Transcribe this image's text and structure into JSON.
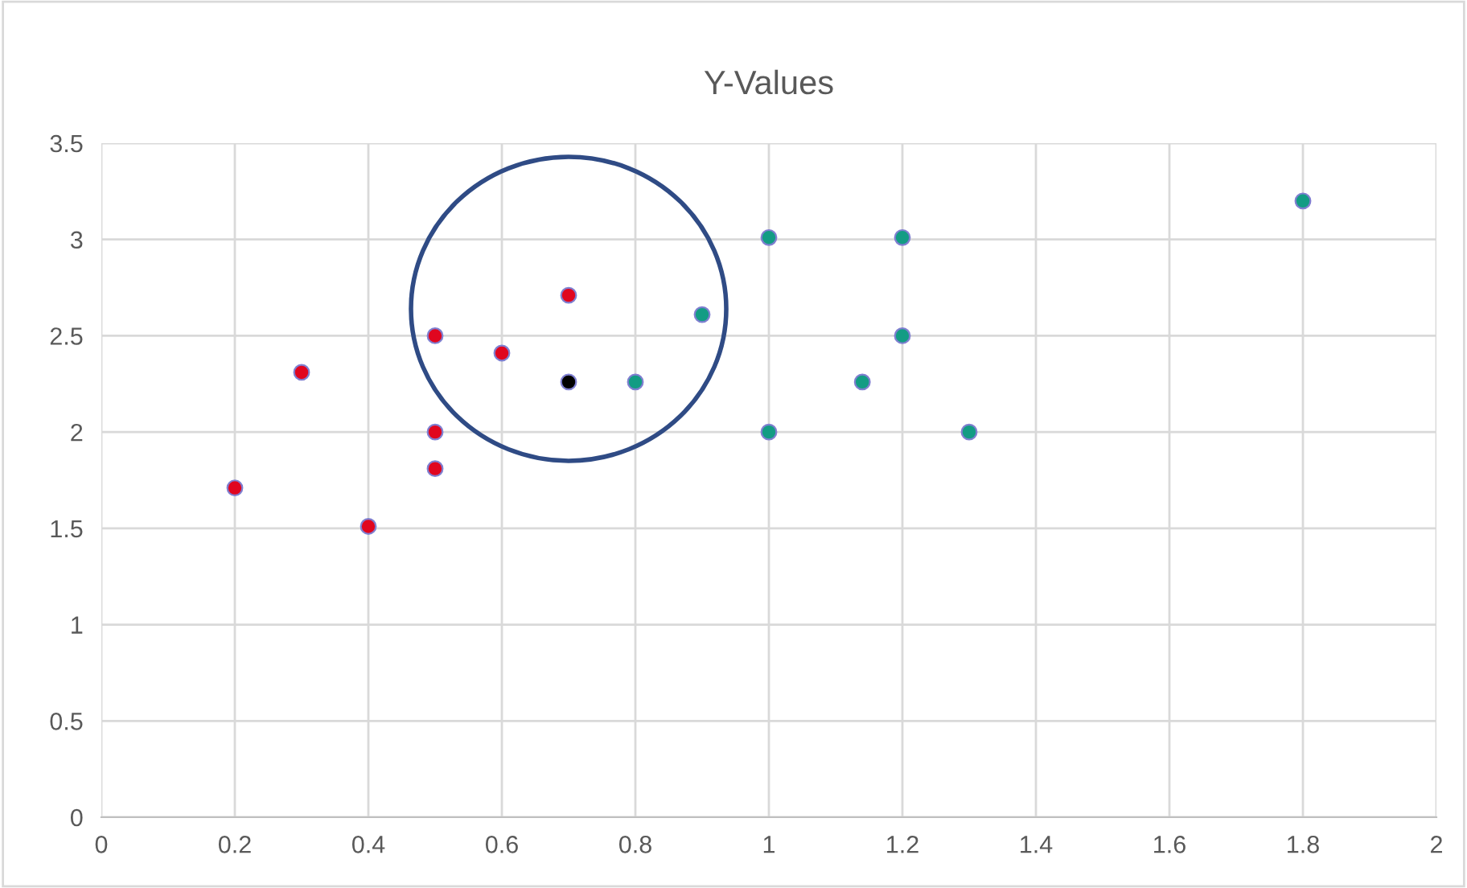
{
  "chart_data": {
    "type": "scatter",
    "title": "Y-Values",
    "series": [
      {
        "color": "#e0061f",
        "x": [
          0.2,
          0.3,
          0.4,
          0.5,
          0.5,
          0.5,
          0.6,
          0.7
        ],
        "values": [
          1.71,
          2.31,
          1.51,
          2.5,
          2.0,
          1.81,
          2.41,
          2.71
        ]
      },
      {
        "color": "#000000",
        "x": [
          0.7
        ],
        "values": [
          2.26
        ]
      },
      {
        "color": "#139c84",
        "x": [
          0.8,
          0.9,
          1.0,
          1.0,
          1.2,
          1.2,
          1.14,
          1.3,
          1.8
        ],
        "values": [
          2.26,
          2.61,
          3.01,
          2.0,
          3.01,
          2.5,
          2.26,
          2.0,
          3.2
        ]
      }
    ],
    "xlim": [
      0,
      2
    ],
    "xticks": [
      0,
      0.2,
      0.4,
      0.6,
      0.8,
      1,
      1.2,
      1.4,
      1.6,
      1.8,
      2
    ],
    "ylim": [
      0,
      3.5
    ],
    "yticks": [
      0,
      0.5,
      1,
      1.5,
      2,
      2.5,
      3,
      3.5
    ],
    "grid": true,
    "marker": "circle"
  }
}
